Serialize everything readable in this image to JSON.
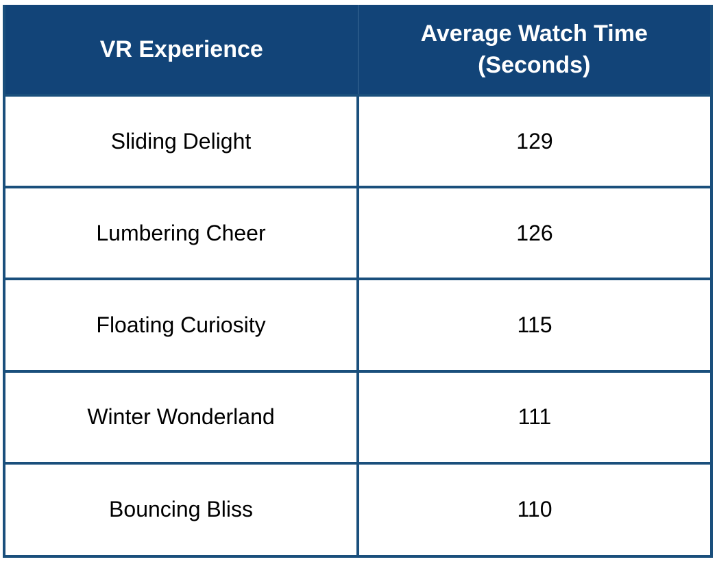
{
  "colors": {
    "header_bg": "#124478",
    "border": "#1a4f7c",
    "header_text": "#ffffff",
    "cell_text": "#000000"
  },
  "chart_data": {
    "type": "table",
    "columns": [
      "VR Experience",
      "Average Watch Time (Seconds)"
    ],
    "header": {
      "col1": "VR Experience",
      "col2_line1": "Average Watch Time",
      "col2_line2": "(Seconds)"
    },
    "rows": [
      {
        "experience": "Sliding Delight",
        "watch_time": "129"
      },
      {
        "experience": "Lumbering Cheer",
        "watch_time": "126"
      },
      {
        "experience": "Floating Curiosity",
        "watch_time": "115"
      },
      {
        "experience": "Winter Wonderland",
        "watch_time": "111"
      },
      {
        "experience": "Bouncing Bliss",
        "watch_time": "110"
      }
    ]
  }
}
